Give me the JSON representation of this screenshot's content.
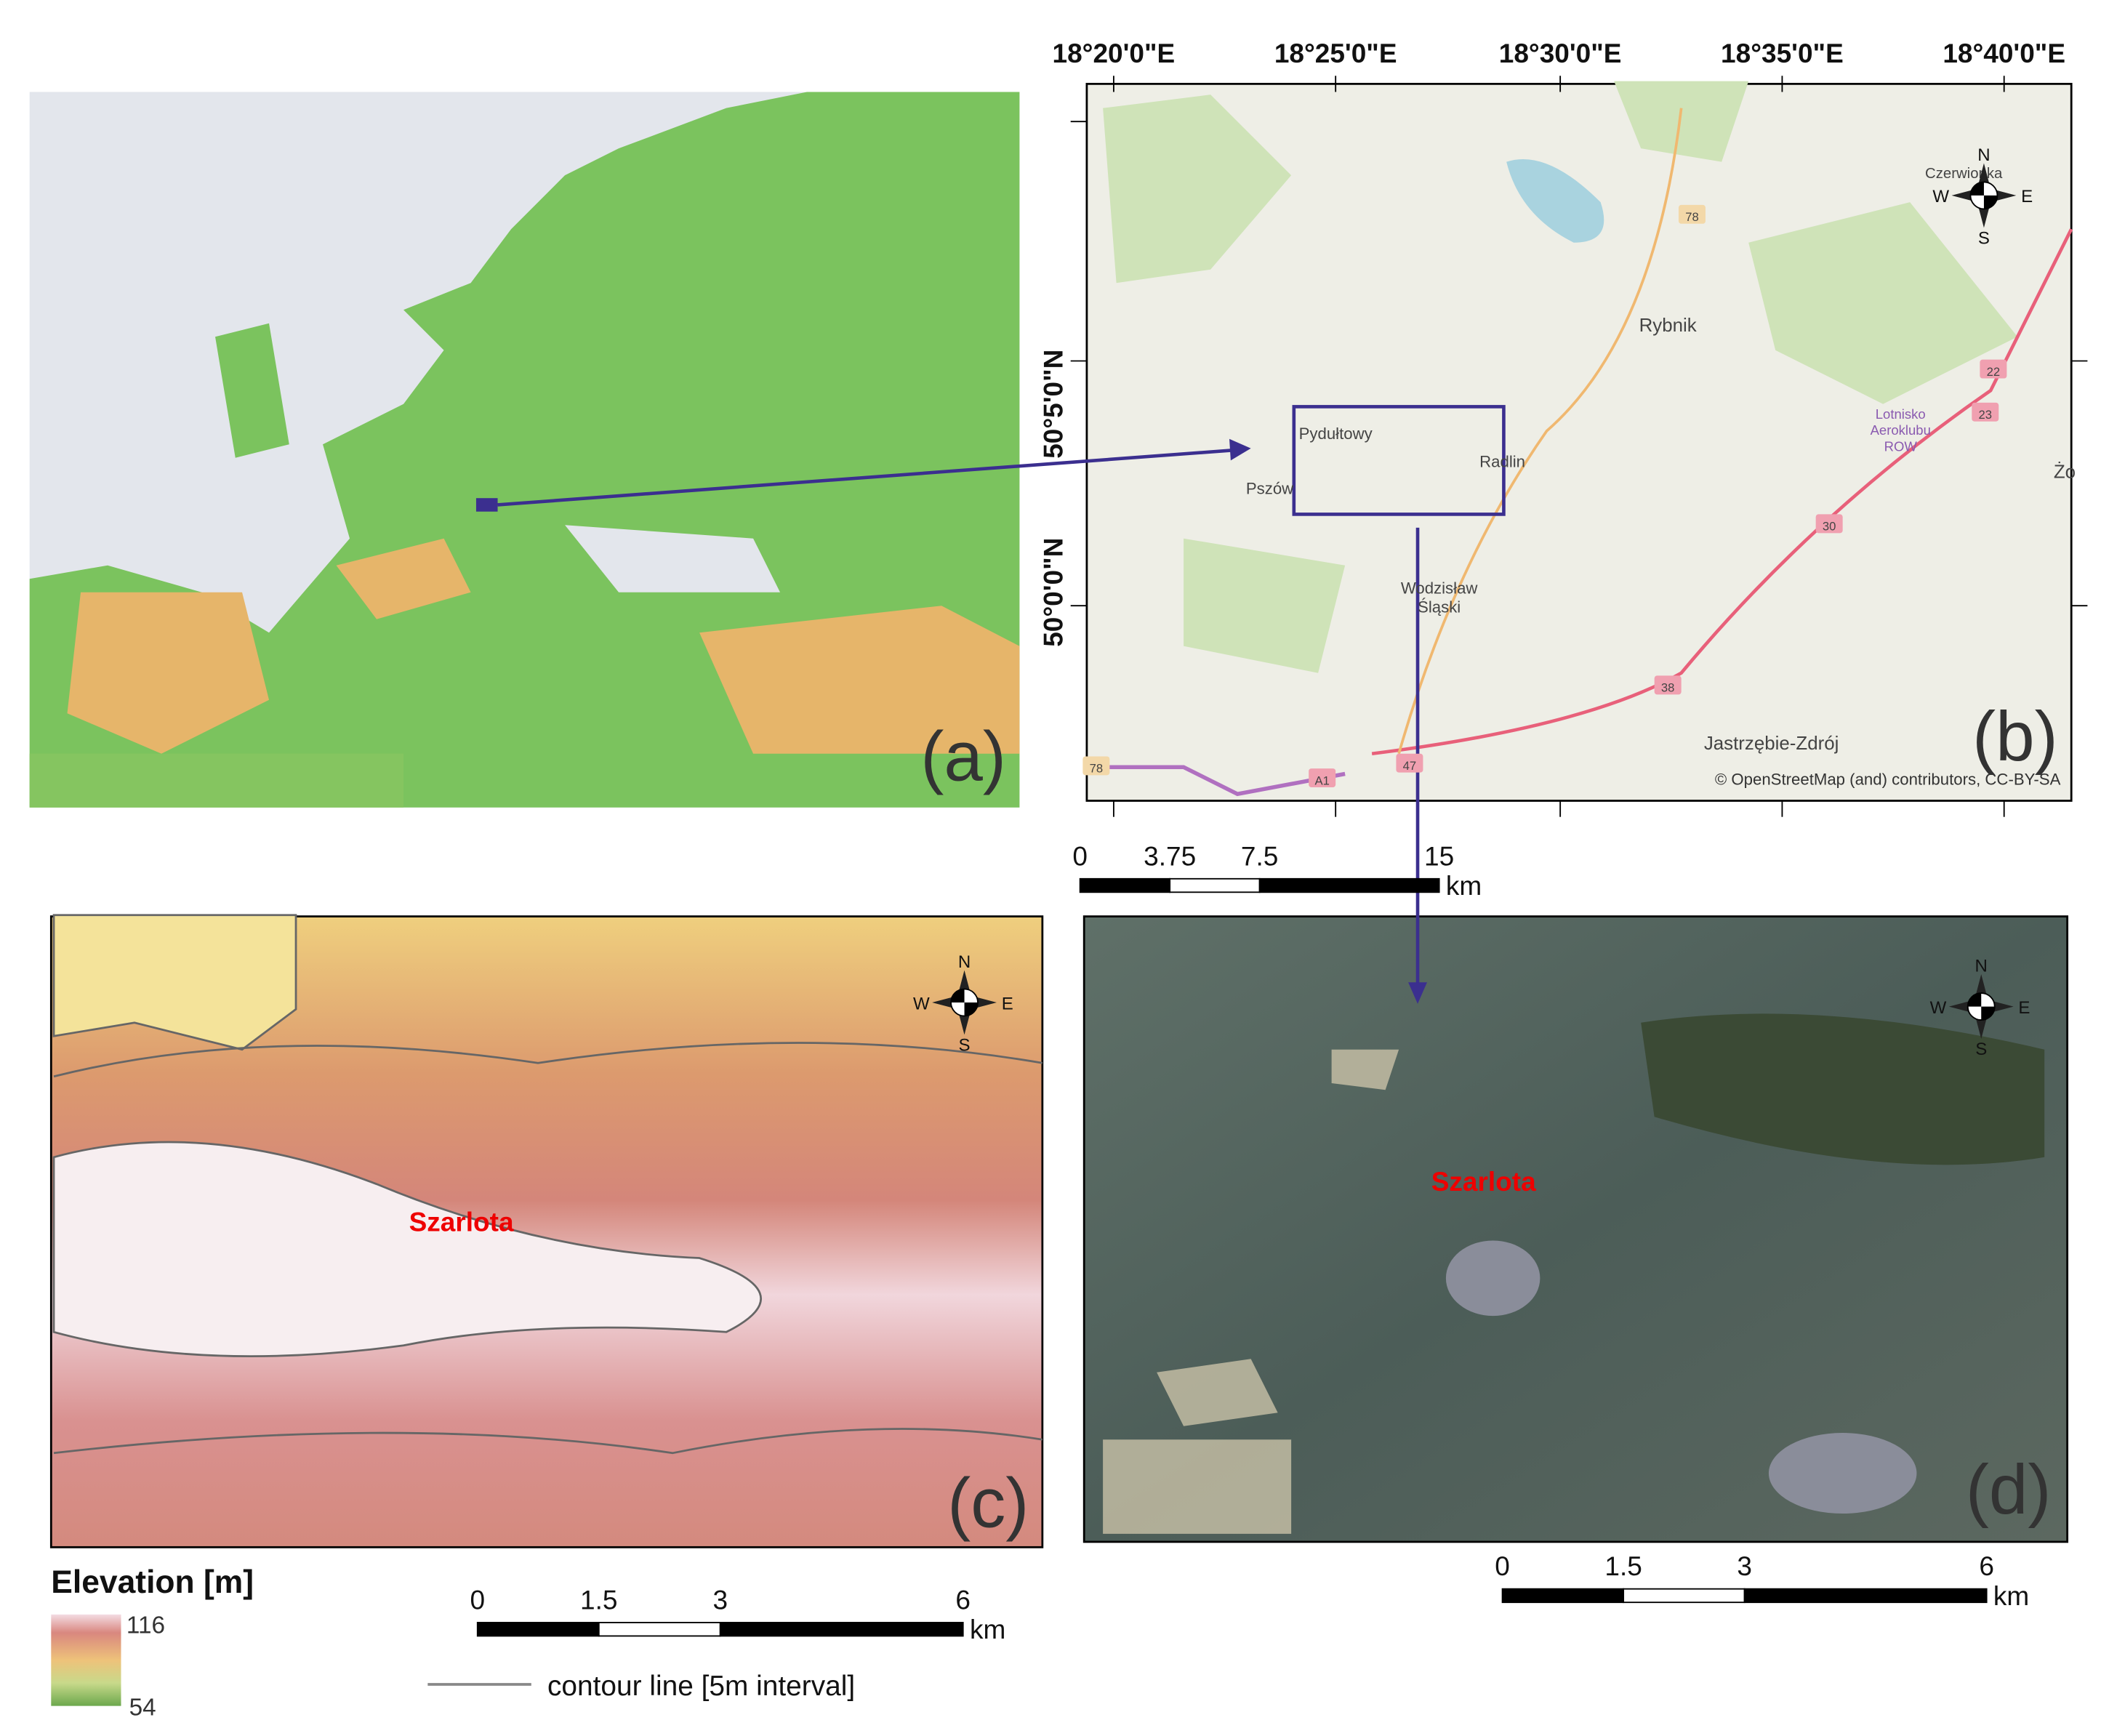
{
  "panels": {
    "a": "(a)",
    "b": "(b)",
    "c": "(c)",
    "d": "(d)"
  },
  "compass": {
    "north": "N",
    "south": "S",
    "west": "W",
    "east": "E"
  },
  "map_b": {
    "longitude_labels": [
      "18°20'0\"E",
      "18°25'0\"E",
      "18°30'0\"E",
      "18°35'0\"E",
      "18°40'0\"E"
    ],
    "latitude_labels": [
      "50°5'0\"N",
      "50°0'0\"N"
    ],
    "places": [
      "Rybnik",
      "Pydułtowy",
      "Radlin",
      "Pszów",
      "Wodzisław",
      "Śląski",
      "Jastrzębie-Zdrój",
      "Lotnisko",
      "Aeroklubu",
      "ROW",
      "Czerwionka",
      "Żo"
    ],
    "roads": [
      "78",
      "22",
      "23",
      "30",
      "38",
      "47",
      "A1",
      "78"
    ],
    "attribution": "© OpenStreetMap (and) contributors, CC-BY-SA",
    "scale": {
      "ticks": [
        0,
        3.75,
        7.5,
        15
      ],
      "unit": "km"
    }
  },
  "map_c": {
    "site": "Szarlota",
    "scale": {
      "ticks": [
        0,
        1.5,
        3,
        6
      ],
      "unit": "km"
    },
    "legend": {
      "title": "Elevation [m]",
      "max": 116,
      "min": 54,
      "contour": "contour line [5m interval]"
    }
  },
  "map_d": {
    "site": "Szarlota",
    "scale": {
      "ticks": [
        0,
        1.5,
        3,
        6
      ],
      "unit": "km"
    }
  }
}
